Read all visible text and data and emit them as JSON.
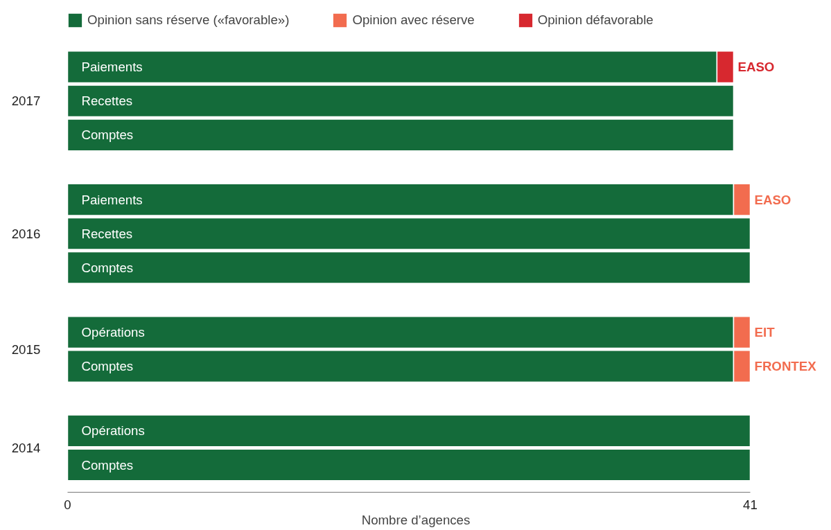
{
  "chart_data": {
    "type": "bar",
    "orientation": "horizontal",
    "stacked": true,
    "categories": [
      "Paiements",
      "Recettes",
      "Comptes",
      "Paiements",
      "Recettes",
      "Comptes",
      "Opérations",
      "Comptes",
      "Opérations",
      "Comptes"
    ],
    "series": [
      {
        "name": "Opinion sans réserve («favorable»)",
        "color": "#146b3a",
        "values": [
          39,
          40,
          40,
          40,
          41,
          41,
          40,
          40,
          41,
          41
        ]
      },
      {
        "name": "Opinion avec réserve",
        "color": "#f26c4f",
        "values": [
          null,
          null,
          null,
          1,
          null,
          null,
          1,
          1,
          null,
          null
        ],
        "value_labels": [
          null,
          null,
          null,
          "EASO",
          null,
          null,
          "EIT",
          "FRONTEX",
          null,
          null
        ]
      },
      {
        "name": "Opinion défavorable",
        "color": "#d7282f",
        "values": [
          1,
          null,
          null,
          null,
          null,
          null,
          null,
          null,
          null,
          null
        ],
        "value_labels": [
          "EASO",
          null,
          null,
          null,
          null,
          null,
          null,
          null,
          null,
          null
        ]
      }
    ],
    "xlim": [
      0,
      41
    ],
    "xticks": [
      0,
      41
    ],
    "xlabel": "Nombre d’agences",
    "grid": false,
    "legend": "top",
    "annotations": [
      "2017",
      "2016",
      "2015",
      "2014"
    ]
  }
}
